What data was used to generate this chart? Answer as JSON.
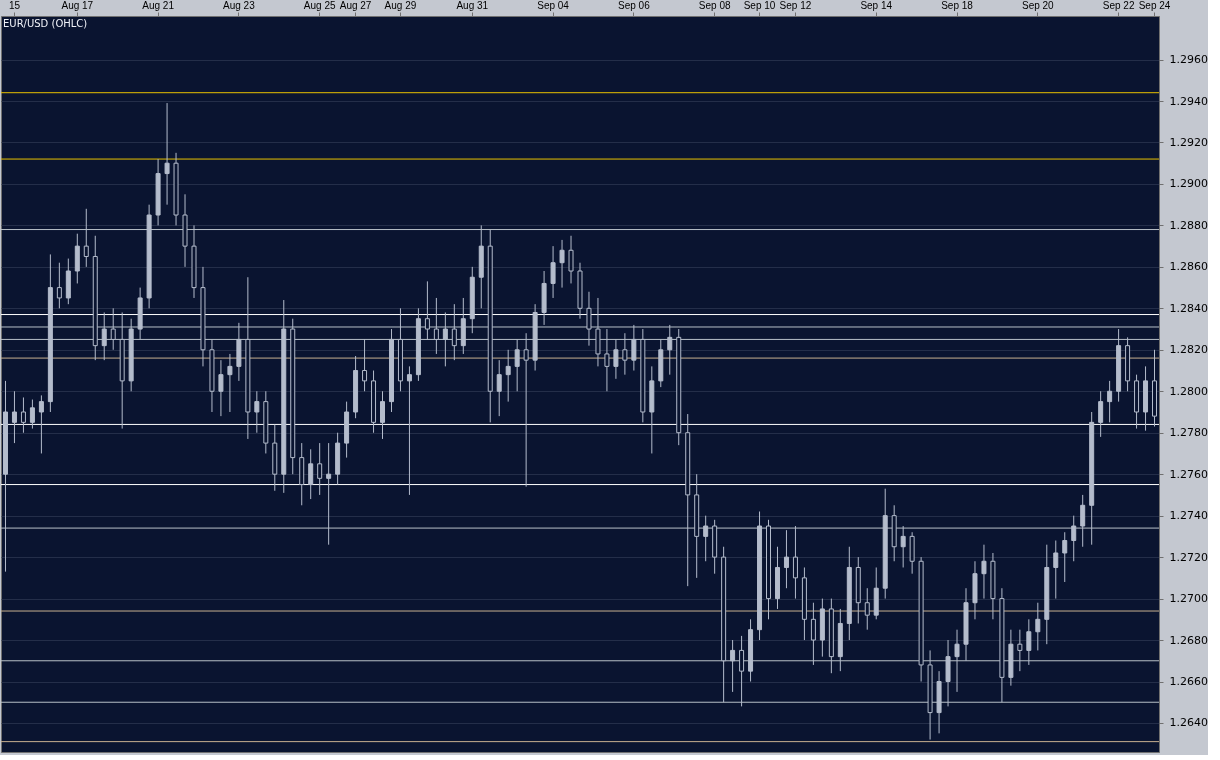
{
  "chart_data": {
    "type": "candlestick",
    "title": "EUR/USD (OHLC)",
    "color": "#b4bccc",
    "grid": "y",
    "categories": [
      null,
      "15",
      null,
      null,
      null,
      null,
      null,
      null,
      "Aug 17",
      null,
      null,
      null,
      null,
      null,
      null,
      null,
      null,
      "Aug 21",
      null,
      null,
      null,
      null,
      null,
      null,
      null,
      null,
      "Aug 23",
      null,
      null,
      null,
      null,
      null,
      null,
      null,
      null,
      "Aug 25",
      null,
      null,
      null,
      "Aug 27",
      null,
      null,
      null,
      null,
      "Aug 29",
      null,
      null,
      null,
      null,
      null,
      null,
      null,
      "Aug 31",
      null,
      null,
      null,
      null,
      null,
      null,
      null,
      null,
      "Sep 04",
      null,
      null,
      null,
      null,
      null,
      null,
      null,
      null,
      "Sep 06",
      null,
      null,
      null,
      null,
      null,
      null,
      null,
      null,
      "Sep 08",
      null,
      null,
      null,
      null,
      "Sep 10",
      null,
      null,
      null,
      "Sep 12",
      null,
      null,
      null,
      null,
      null,
      null,
      null,
      null,
      "Sep 14",
      null,
      null,
      null,
      null,
      null,
      null,
      null,
      null,
      "Sep 18",
      null,
      null,
      null,
      null,
      null,
      null,
      null,
      null,
      "Sep 20",
      null,
      null,
      null,
      null,
      null,
      null,
      null,
      null,
      "Sep 22",
      null,
      null,
      null,
      "Sep 24"
    ],
    "ohlc": [
      [
        1.276,
        1.2805,
        1.2713,
        1.279
      ],
      [
        1.2785,
        1.28,
        1.2775,
        1.279
      ],
      [
        1.279,
        1.2797,
        1.278,
        1.2785
      ],
      [
        1.2785,
        1.2796,
        1.2782,
        1.2792
      ],
      [
        1.279,
        1.2798,
        1.277,
        1.2795
      ],
      [
        1.2795,
        1.2866,
        1.279,
        1.285
      ],
      [
        1.285,
        1.2862,
        1.284,
        1.2845
      ],
      [
        1.2845,
        1.2864,
        1.2842,
        1.2858
      ],
      [
        1.2858,
        1.2876,
        1.2852,
        1.287
      ],
      [
        1.287,
        1.2888,
        1.286,
        1.2865
      ],
      [
        1.2865,
        1.2875,
        1.2815,
        1.2822
      ],
      [
        1.2822,
        1.2838,
        1.2815,
        1.283
      ],
      [
        1.283,
        1.284,
        1.282,
        1.2825
      ],
      [
        1.2825,
        1.2838,
        1.2782,
        1.2805
      ],
      [
        1.2805,
        1.2835,
        1.28,
        1.283
      ],
      [
        1.283,
        1.285,
        1.2825,
        1.2845
      ],
      [
        1.2845,
        1.289,
        1.284,
        1.2885
      ],
      [
        1.2885,
        1.2912,
        1.288,
        1.2905
      ],
      [
        1.2905,
        1.2939,
        1.289,
        1.291
      ],
      [
        1.291,
        1.2915,
        1.288,
        1.2885
      ],
      [
        1.2885,
        1.2895,
        1.286,
        1.287
      ],
      [
        1.287,
        1.288,
        1.2845,
        1.285
      ],
      [
        1.285,
        1.286,
        1.2812,
        1.282
      ],
      [
        1.282,
        1.2825,
        1.279,
        1.28
      ],
      [
        1.28,
        1.2815,
        1.2788,
        1.2808
      ],
      [
        1.2808,
        1.2818,
        1.279,
        1.2812
      ],
      [
        1.2812,
        1.2833,
        1.2805,
        1.2825
      ],
      [
        1.2825,
        1.2855,
        1.2777,
        1.279
      ],
      [
        1.279,
        1.28,
        1.278,
        1.2795
      ],
      [
        1.2795,
        1.28,
        1.277,
        1.2775
      ],
      [
        1.2775,
        1.2784,
        1.2752,
        1.276
      ],
      [
        1.276,
        1.2844,
        1.2751,
        1.283
      ],
      [
        1.283,
        1.2835,
        1.276,
        1.2768
      ],
      [
        1.2768,
        1.2775,
        1.2745,
        1.2755
      ],
      [
        1.2755,
        1.2772,
        1.2748,
        1.2765
      ],
      [
        1.2765,
        1.2775,
        1.275,
        1.2758
      ],
      [
        1.2758,
        1.2775,
        1.2726,
        1.276
      ],
      [
        1.276,
        1.278,
        1.2755,
        1.2775
      ],
      [
        1.2775,
        1.2795,
        1.2768,
        1.279
      ],
      [
        1.279,
        1.2817,
        1.2787,
        1.281
      ],
      [
        1.281,
        1.2825,
        1.28,
        1.2805
      ],
      [
        1.2805,
        1.281,
        1.278,
        1.2785
      ],
      [
        1.2785,
        1.28,
        1.2777,
        1.2795
      ],
      [
        1.2795,
        1.283,
        1.279,
        1.2825
      ],
      [
        1.2825,
        1.284,
        1.28,
        1.2805
      ],
      [
        1.2805,
        1.2812,
        1.275,
        1.2808
      ],
      [
        1.2808,
        1.284,
        1.2805,
        1.2835
      ],
      [
        1.2835,
        1.2853,
        1.2825,
        1.283
      ],
      [
        1.283,
        1.2845,
        1.2818,
        1.2825
      ],
      [
        1.2825,
        1.2838,
        1.2812,
        1.283
      ],
      [
        1.283,
        1.2842,
        1.2815,
        1.2822
      ],
      [
        1.2822,
        1.2845,
        1.2818,
        1.2835
      ],
      [
        1.2835,
        1.286,
        1.2828,
        1.2855
      ],
      [
        1.2855,
        1.288,
        1.284,
        1.287
      ],
      [
        1.287,
        1.2878,
        1.2785,
        1.28
      ],
      [
        1.28,
        1.2815,
        1.2788,
        1.2808
      ],
      [
        1.2808,
        1.282,
        1.2795,
        1.2812
      ],
      [
        1.2812,
        1.2825,
        1.28,
        1.282
      ],
      [
        1.282,
        1.2828,
        1.2754,
        1.2815
      ],
      [
        1.2815,
        1.2842,
        1.281,
        1.2838
      ],
      [
        1.2838,
        1.2858,
        1.2832,
        1.2852
      ],
      [
        1.2852,
        1.287,
        1.2845,
        1.2862
      ],
      [
        1.2862,
        1.2873,
        1.285,
        1.2868
      ],
      [
        1.2868,
        1.2875,
        1.2852,
        1.2858
      ],
      [
        1.2858,
        1.2862,
        1.2835,
        1.284
      ],
      [
        1.284,
        1.2848,
        1.2822,
        1.283
      ],
      [
        1.283,
        1.2845,
        1.2812,
        1.2818
      ],
      [
        1.2818,
        1.283,
        1.28,
        1.2812
      ],
      [
        1.2812,
        1.2825,
        1.2806,
        1.282
      ],
      [
        1.282,
        1.2828,
        1.2808,
        1.2815
      ],
      [
        1.2815,
        1.2832,
        1.281,
        1.2825
      ],
      [
        1.2825,
        1.283,
        1.2785,
        1.279
      ],
      [
        1.279,
        1.2812,
        1.277,
        1.2805
      ],
      [
        1.2805,
        1.2825,
        1.2802,
        1.282
      ],
      [
        1.282,
        1.2832,
        1.2808,
        1.2826
      ],
      [
        1.2826,
        1.283,
        1.2774,
        1.278
      ],
      [
        1.278,
        1.2789,
        1.2706,
        1.275
      ],
      [
        1.275,
        1.276,
        1.271,
        1.273
      ],
      [
        1.273,
        1.274,
        1.2718,
        1.2735
      ],
      [
        1.2735,
        1.2738,
        1.2712,
        1.272
      ],
      [
        1.272,
        1.2725,
        1.265,
        1.267
      ],
      [
        1.267,
        1.268,
        1.2655,
        1.2675
      ],
      [
        1.2675,
        1.2682,
        1.2648,
        1.2665
      ],
      [
        1.2665,
        1.269,
        1.266,
        1.2685
      ],
      [
        1.2685,
        1.2742,
        1.268,
        1.2735
      ],
      [
        1.2735,
        1.2738,
        1.269,
        1.27
      ],
      [
        1.27,
        1.2725,
        1.2695,
        1.2715
      ],
      [
        1.2715,
        1.2733,
        1.2705,
        1.272
      ],
      [
        1.272,
        1.2735,
        1.27,
        1.271
      ],
      [
        1.271,
        1.2715,
        1.268,
        1.269
      ],
      [
        1.269,
        1.2698,
        1.2668,
        1.268
      ],
      [
        1.268,
        1.27,
        1.2672,
        1.2695
      ],
      [
        1.2695,
        1.27,
        1.2664,
        1.2672
      ],
      [
        1.2672,
        1.2695,
        1.2665,
        1.2688
      ],
      [
        1.2688,
        1.2725,
        1.268,
        1.2715
      ],
      [
        1.2715,
        1.272,
        1.2688,
        1.2698
      ],
      [
        1.2698,
        1.2705,
        1.2685,
        1.2692
      ],
      [
        1.2692,
        1.2715,
        1.269,
        1.2705
      ],
      [
        1.2705,
        1.2753,
        1.27,
        1.274
      ],
      [
        1.274,
        1.2745,
        1.2718,
        1.2725
      ],
      [
        1.2725,
        1.2735,
        1.2715,
        1.273
      ],
      [
        1.273,
        1.2732,
        1.2712,
        1.2718
      ],
      [
        1.2718,
        1.272,
        1.266,
        1.2668
      ],
      [
        1.2668,
        1.2675,
        1.2632,
        1.2645
      ],
      [
        1.2645,
        1.2665,
        1.2635,
        1.266
      ],
      [
        1.266,
        1.268,
        1.2648,
        1.2672
      ],
      [
        1.2672,
        1.2685,
        1.2655,
        1.2678
      ],
      [
        1.2678,
        1.2705,
        1.267,
        1.2698
      ],
      [
        1.2698,
        1.2718,
        1.269,
        1.2712
      ],
      [
        1.2712,
        1.2726,
        1.27,
        1.2718
      ],
      [
        1.2718,
        1.2722,
        1.269,
        1.27
      ],
      [
        1.27,
        1.2705,
        1.265,
        1.2662
      ],
      [
        1.2662,
        1.2685,
        1.2658,
        1.2678
      ],
      [
        1.2678,
        1.2685,
        1.2665,
        1.2675
      ],
      [
        1.2675,
        1.269,
        1.2668,
        1.2684
      ],
      [
        1.2684,
        1.2698,
        1.2675,
        1.269
      ],
      [
        1.269,
        1.2726,
        1.2678,
        1.2715
      ],
      [
        1.2715,
        1.2728,
        1.27,
        1.2722
      ],
      [
        1.2722,
        1.2732,
        1.2708,
        1.2728
      ],
      [
        1.2728,
        1.274,
        1.2718,
        1.2735
      ],
      [
        1.2735,
        1.275,
        1.2725,
        1.2745
      ],
      [
        1.2745,
        1.279,
        1.2726,
        1.2785
      ],
      [
        1.2785,
        1.28,
        1.2778,
        1.2795
      ],
      [
        1.2795,
        1.2805,
        1.2785,
        1.28
      ],
      [
        1.28,
        1.283,
        1.2795,
        1.2822
      ],
      [
        1.2822,
        1.2826,
        1.28,
        1.2805
      ],
      [
        1.2805,
        1.2808,
        1.2782,
        1.279
      ],
      [
        1.279,
        1.2812,
        1.2781,
        1.2805
      ],
      [
        1.2805,
        1.282,
        1.2783,
        1.2788
      ]
    ],
    "ylim": [
      1.2626,
      1.2981
    ],
    "yticks": [
      {
        "value": 1.264,
        "label": "1.2640"
      },
      {
        "value": 1.266,
        "label": "1.2660"
      },
      {
        "value": 1.268,
        "label": "1.2680"
      },
      {
        "value": 1.27,
        "label": "1.2700"
      },
      {
        "value": 1.272,
        "label": "1.2720"
      },
      {
        "value": 1.274,
        "label": "1.2740"
      },
      {
        "value": 1.276,
        "label": "1.2760"
      },
      {
        "value": 1.278,
        "label": "1.2780"
      },
      {
        "value": 1.28,
        "label": "1.2800"
      },
      {
        "value": 1.282,
        "label": "1.2820"
      },
      {
        "value": 1.284,
        "label": "1.2840"
      },
      {
        "value": 1.286,
        "label": "1.2860"
      },
      {
        "value": 1.288,
        "label": "1.2880"
      },
      {
        "value": 1.29,
        "label": "1.2900"
      },
      {
        "value": 1.292,
        "label": "1.2920"
      },
      {
        "value": 1.294,
        "label": "1.2940"
      },
      {
        "value": 1.296,
        "label": "1.2960"
      }
    ],
    "ref_lines": [
      {
        "axis": "y",
        "value": 1.2944,
        "color": "#e8c000"
      },
      {
        "axis": "y",
        "value": 1.2912,
        "color": "#e8c000"
      },
      {
        "axis": "y",
        "value": 1.2878,
        "color": "#b8c0c8"
      },
      {
        "axis": "y",
        "value": 1.2837,
        "color": "#ffffff"
      },
      {
        "axis": "y",
        "value": 1.2831,
        "color": "#b8c0c8"
      },
      {
        "axis": "y",
        "value": 1.2825,
        "color": "#b8c0c8"
      },
      {
        "axis": "y",
        "value": 1.2816,
        "color": "#c8b090"
      },
      {
        "axis": "y",
        "value": 1.2784,
        "color": "#ffffff"
      },
      {
        "axis": "y",
        "value": 1.2755,
        "color": "#ffffff"
      },
      {
        "axis": "y",
        "value": 1.2734,
        "color": "#b8c0c8"
      },
      {
        "axis": "y",
        "value": 1.2694,
        "color": "#c8b090"
      },
      {
        "axis": "y",
        "value": 1.267,
        "color": "#b8c0c8"
      },
      {
        "axis": "y",
        "value": 1.265,
        "color": "#b8c0c8"
      },
      {
        "axis": "y",
        "value": 1.2631,
        "color": "#c8b090"
      }
    ]
  }
}
